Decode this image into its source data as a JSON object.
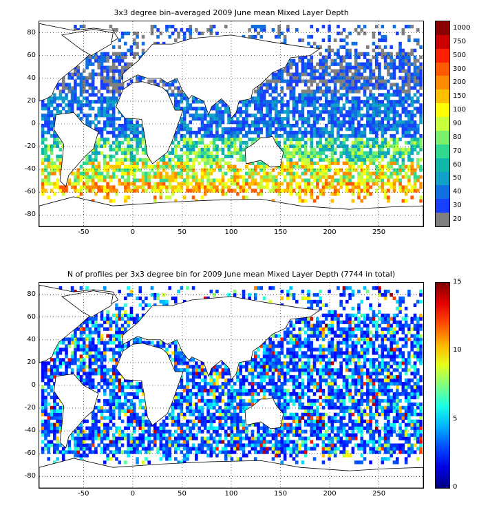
{
  "panel1": {
    "title": "3x3 degree bin–averaged 2009 June mean Mixed Layer Depth",
    "colorbar_labels": [
      "1000",
      "750",
      "500",
      "300",
      "200",
      "150",
      "100",
      "90",
      "80",
      "70",
      "60",
      "50",
      "40",
      "30",
      "20"
    ],
    "colorbar_colors": [
      "#8b0000",
      "#cc0000",
      "#ff2000",
      "#ff5a00",
      "#ff8c00",
      "#ffc000",
      "#ffff00",
      "#c8ff3c",
      "#7cf06c",
      "#30d890",
      "#10b8a8",
      "#10a0c8",
      "#1070e0",
      "#1840ff",
      "#808080"
    ]
  },
  "panel2": {
    "title": "N of profiles per 3x3 degree bin for 2009 June mean Mixed Layer Depth  (7744 in total)",
    "colorbar_labels": [
      "15",
      "10",
      "5",
      "0"
    ],
    "colorbar_range": [
      0,
      15
    ]
  },
  "axes": {
    "x_ticks": [
      "-50",
      "0",
      "50",
      "100",
      "150",
      "200",
      "250"
    ],
    "y_ticks": [
      "80",
      "60",
      "40",
      "20",
      "0",
      "-20",
      "-40",
      "-60",
      "-80"
    ],
    "xlim": [
      -95,
      295
    ],
    "ylim": [
      -90,
      90
    ]
  },
  "colors": {
    "land_outline": "#000000",
    "grid": "#000000",
    "missing_bin": "#808080"
  }
}
